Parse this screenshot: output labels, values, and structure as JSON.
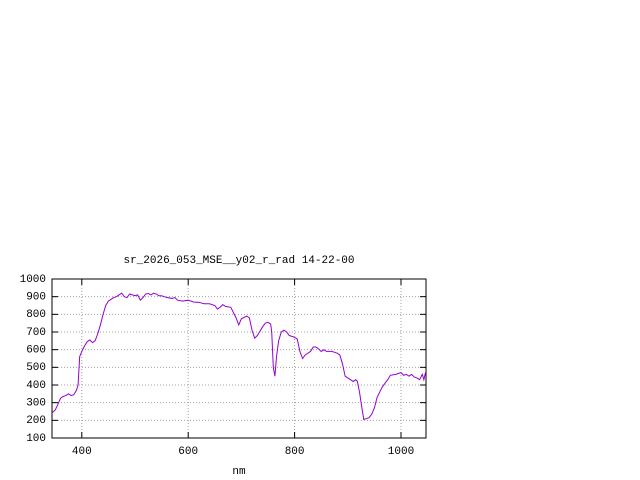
{
  "chart_data": {
    "type": "line",
    "title": "sr_2026_053_MSE__y02_r_rad 14-22-00",
    "xlabel": "nm",
    "color": "#9400d3",
    "grid": true,
    "xlim": [
      344,
      1047
    ],
    "xticks": [
      400,
      600,
      800,
      1000
    ],
    "ylim": [
      100,
      1000
    ],
    "yticks": [
      100,
      200,
      300,
      400,
      500,
      600,
      700,
      800,
      900,
      1000
    ],
    "x": [
      345,
      350,
      355,
      360,
      365,
      370,
      375,
      380,
      385,
      390,
      393,
      396,
      400,
      405,
      410,
      415,
      420,
      425,
      430,
      435,
      440,
      445,
      450,
      455,
      460,
      465,
      470,
      475,
      480,
      485,
      490,
      495,
      500,
      505,
      510,
      515,
      520,
      525,
      530,
      535,
      540,
      545,
      550,
      560,
      570,
      575,
      580,
      590,
      600,
      610,
      620,
      630,
      640,
      650,
      655,
      660,
      665,
      670,
      680,
      690,
      695,
      700,
      710,
      715,
      720,
      725,
      730,
      740,
      745,
      750,
      755,
      757,
      760,
      763,
      766,
      770,
      775,
      780,
      785,
      790,
      800,
      805,
      810,
      815,
      820,
      830,
      835,
      840,
      845,
      850,
      855,
      860,
      870,
      880,
      885,
      890,
      895,
      900,
      905,
      910,
      915,
      918,
      922,
      926,
      930,
      935,
      940,
      945,
      950,
      955,
      960,
      965,
      970,
      975,
      980,
      990,
      995,
      1000,
      1005,
      1010,
      1015,
      1020,
      1025,
      1030,
      1035,
      1040,
      1043,
      1046
    ],
    "values": [
      245,
      258,
      290,
      325,
      335,
      340,
      350,
      340,
      345,
      370,
      400,
      560,
      590,
      620,
      645,
      655,
      640,
      650,
      690,
      740,
      800,
      850,
      875,
      885,
      895,
      900,
      910,
      920,
      900,
      895,
      915,
      910,
      905,
      910,
      880,
      895,
      915,
      918,
      910,
      920,
      915,
      905,
      905,
      895,
      890,
      895,
      880,
      875,
      880,
      870,
      868,
      860,
      860,
      850,
      830,
      840,
      855,
      845,
      840,
      780,
      740,
      775,
      790,
      780,
      710,
      665,
      680,
      730,
      750,
      755,
      745,
      700,
      500,
      450,
      560,
      650,
      700,
      710,
      700,
      680,
      670,
      660,
      590,
      550,
      570,
      590,
      615,
      615,
      605,
      590,
      600,
      590,
      590,
      580,
      570,
      520,
      450,
      440,
      430,
      420,
      430,
      420,
      360,
      280,
      205,
      210,
      215,
      235,
      270,
      330,
      360,
      390,
      410,
      430,
      455,
      460,
      465,
      470,
      455,
      460,
      450,
      460,
      445,
      440,
      430,
      460,
      430,
      470
    ]
  }
}
